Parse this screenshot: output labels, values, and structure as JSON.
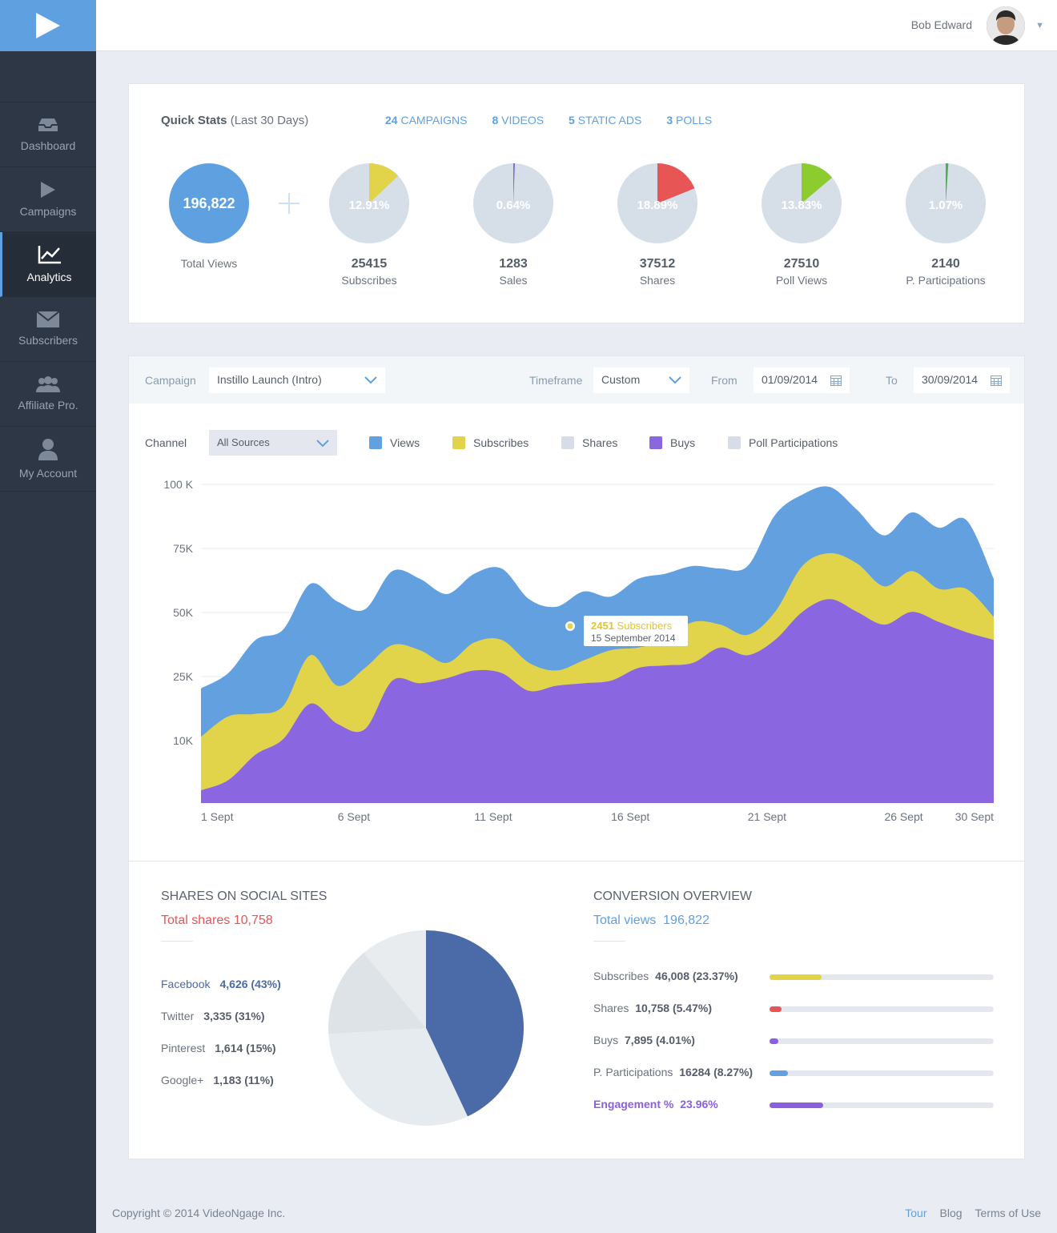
{
  "sidebar": {
    "items": [
      {
        "label": "Dashboard",
        "icon": "inbox-icon"
      },
      {
        "label": "Campaigns",
        "icon": "play-icon"
      },
      {
        "label": "Analytics",
        "icon": "analytics-icon",
        "active": true
      },
      {
        "label": "Subscribers",
        "icon": "envelope-icon"
      },
      {
        "label": "Affiliate Pro.",
        "icon": "group-icon"
      },
      {
        "label": "My Account",
        "icon": "user-icon"
      }
    ]
  },
  "header": {
    "user_name": "Bob Edward",
    "caret": "▼"
  },
  "quick_stats": {
    "title_bold": "Quick Stats",
    "title_rest": " (Last 30 Days)",
    "links": [
      {
        "count": "24",
        "label": "CAMPAIGNS"
      },
      {
        "count": "8",
        "label": "VIDEOS"
      },
      {
        "count": "5",
        "label": "STATIC ADS"
      },
      {
        "count": "3",
        "label": "POLLS"
      }
    ],
    "total": {
      "value": "196,822",
      "label": "Total Views"
    },
    "stats": [
      {
        "pct": "12.91%",
        "fraction": 0.1291,
        "color": "#e2d44a",
        "num": "25415",
        "label": "Subscribes"
      },
      {
        "pct": "0.64%",
        "fraction": 0.0064,
        "color": "#8a5fe0",
        "num": "1283",
        "label": "Sales"
      },
      {
        "pct": "18.89%",
        "fraction": 0.1889,
        "color": "#e85555",
        "num": "37512",
        "label": "Shares"
      },
      {
        "pct": "13.83%",
        "fraction": 0.1383,
        "color": "#8ccc2e",
        "num": "27510",
        "label": "Poll Views"
      },
      {
        "pct": "1.07%",
        "fraction": 0.0107,
        "color": "#45b549",
        "num": "2140",
        "label": "P. Participations"
      }
    ]
  },
  "filters": {
    "campaign_label": "Campaign",
    "campaign_value": "Instillo Launch (Intro)",
    "timeframe_label": "Timeframe",
    "timeframe_value": "Custom",
    "from_label": "From",
    "from_value": "01/09/2014",
    "to_label": "To",
    "to_value": "30/09/2014",
    "channel_label": "Channel",
    "channel_value": "All Sources"
  },
  "legend": [
    {
      "label": "Views",
      "color": "#62a0e0"
    },
    {
      "label": "Subscribes",
      "color": "#e2d44a"
    },
    {
      "label": "Shares",
      "color": "#d7dde6"
    },
    {
      "label": "Buys",
      "color": "#8a66e0"
    },
    {
      "label": "Poll Participations",
      "color": "#d7dde6"
    }
  ],
  "tooltip": {
    "value": "2451",
    "label": "Subscribers",
    "date": "15 September 2014"
  },
  "chart_data": {
    "type": "area",
    "x": [
      "1 Sept",
      "2 Sept",
      "3 Sept",
      "4 Sept",
      "5 Sept",
      "6 Sept",
      "7 Sept",
      "8 Sept",
      "9 Sept",
      "10 Sept",
      "11 Sept",
      "12 Sept",
      "13 Sept",
      "14 Sept",
      "15 Sept",
      "16 Sept",
      "17 Sept",
      "18 Sept",
      "19 Sept",
      "20 Sept",
      "21 Sept",
      "22 Sept",
      "23 Sept",
      "24 Sept",
      "25 Sept",
      "26 Sept",
      "27 Sept",
      "28 Sept",
      "29 Sept",
      "30 Sept"
    ],
    "x_tick_labels": [
      "1 Sept",
      "6 Sept",
      "11 Sept",
      "16 Sept",
      "21 Sept",
      "26 Sept",
      "30 Sept"
    ],
    "y_tick_labels": [
      "100 K",
      "75K",
      "50K",
      "25K",
      "10K"
    ],
    "stacked": true,
    "series": [
      {
        "name": "Buys",
        "color": "#8a66e0",
        "values": [
          5,
          9,
          19,
          25,
          39,
          31,
          29,
          48,
          47,
          49,
          52,
          51,
          44,
          46,
          47,
          48,
          53,
          54,
          55,
          61,
          58,
          64,
          75,
          80,
          75,
          70,
          75,
          71,
          67,
          64
        ]
      },
      {
        "name": "Subscribes",
        "color": "#e2d44a",
        "values": [
          26,
          34,
          35,
          38,
          58,
          46,
          53,
          62,
          60,
          55,
          63,
          64,
          55,
          52,
          56,
          60,
          61,
          64,
          71,
          70,
          66,
          75,
          93,
          98,
          94,
          85,
          91,
          84,
          84,
          73
        ]
      },
      {
        "name": "Views",
        "color": "#62a0e0",
        "values": [
          45,
          51,
          64,
          68,
          86,
          79,
          76,
          91,
          88,
          82,
          90,
          92,
          80,
          77,
          83,
          81,
          88,
          90,
          93,
          92,
          93,
          113,
          121,
          124,
          115,
          105,
          114,
          108,
          111,
          88
        ]
      }
    ]
  },
  "social": {
    "title": "SHARES ON SOCIAL SITES",
    "total_label": "Total shares",
    "total_value": "10,758",
    "rows": [
      {
        "name": "Facebook",
        "value": "4,626 (43%)",
        "fraction": 0.43,
        "color": "#4a6aa8"
      },
      {
        "name": "Twitter",
        "value": "3,335 (31%)",
        "fraction": 0.31,
        "color": "#e6ebef"
      },
      {
        "name": "Pinterest",
        "value": "1,614 (15%)",
        "fraction": 0.15,
        "color": "#dde3e7"
      },
      {
        "name": "Google+",
        "value": "1,183 (11%)",
        "fraction": 0.11,
        "color": "#e8ecef"
      }
    ]
  },
  "conversion": {
    "title": "CONVERSION OVERVIEW",
    "total_label": "Total views",
    "total_value": "196,822",
    "rows": [
      {
        "name": "Subscribes",
        "value": "46,008 (23.37%)",
        "fraction": 0.2337,
        "color": "#e2d44a"
      },
      {
        "name": "Shares",
        "value": "10,758 (5.47%)",
        "fraction": 0.0547,
        "color": "#e85555"
      },
      {
        "name": "Buys",
        "value": "7,895 (4.01%)",
        "fraction": 0.0401,
        "color": "#8a5fe0"
      },
      {
        "name": "P. Participations",
        "value": "16284 (8.27%)",
        "fraction": 0.0827,
        "color": "#62a0e0"
      },
      {
        "name": "Engagement %",
        "value": "23.96%",
        "fraction": 0.2396,
        "color": "#8a5fe0"
      }
    ]
  },
  "footer": {
    "copyright": "Copyright © 2014 VideoNgage Inc.",
    "links": [
      "Tour",
      "Blog",
      "Terms of Use"
    ]
  }
}
